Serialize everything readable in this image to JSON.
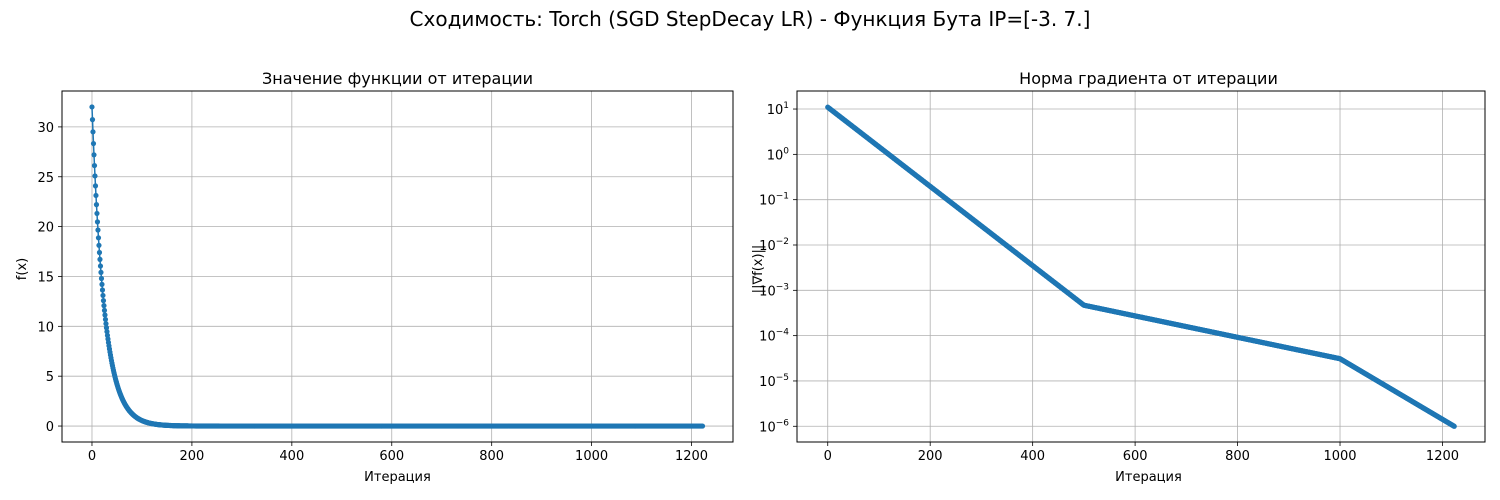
{
  "figure": {
    "title": "Сходимость: Torch (SGD StepDecay LR) - Функция Бута IP=[-3.  7.]"
  },
  "colors": {
    "series": "#1f77b4",
    "grid": "#b0b0b0",
    "axes": "#000000"
  },
  "chart_data": [
    {
      "type": "line",
      "title": "Значение функции от итерации",
      "xlabel": "Итерация",
      "ylabel": "f(x)",
      "xlim": [
        -60,
        1283
      ],
      "ylim": [
        -1.6,
        33.6
      ],
      "xticks": [
        0,
        200,
        400,
        600,
        800,
        1000,
        1200
      ],
      "yticks": [
        0,
        5,
        10,
        15,
        20,
        25,
        30
      ],
      "grid": true,
      "marker": "circle",
      "series": [
        {
          "model": "exponential_decay",
          "x_start": 0,
          "x_end": 1223,
          "y_start": 32.0,
          "decay_rate": 0.0406,
          "plateau_value": 0.0
        }
      ]
    },
    {
      "type": "line",
      "title": "Норма градиента от итерации",
      "xlabel": "Итерация",
      "ylabel": "||∇f(x)||",
      "yscale": "log",
      "xlim": [
        -60,
        1283
      ],
      "ylim": [
        4.5e-07,
        25
      ],
      "xticks": [
        0,
        200,
        400,
        600,
        800,
        1000,
        1200
      ],
      "yticks": [
        1e-06,
        1e-05,
        0.0001,
        0.001,
        0.01,
        0.1,
        1,
        10
      ],
      "ytick_labels": [
        {
          "base": "10",
          "exp": "−6"
        },
        {
          "base": "10",
          "exp": "−5"
        },
        {
          "base": "10",
          "exp": "−4"
        },
        {
          "base": "10",
          "exp": "−3"
        },
        {
          "base": "10",
          "exp": "−2"
        },
        {
          "base": "10",
          "exp": "−1"
        },
        {
          "base": "10",
          "exp": "0"
        },
        {
          "base": "10",
          "exp": "1"
        }
      ],
      "grid": true,
      "marker": "circle",
      "series": [
        {
          "model": "piecewise_log_linear",
          "x": [
            0,
            500,
            1000,
            1223
          ],
          "y": [
            11.0,
            0.00047,
            3.1e-05,
            1e-06
          ]
        }
      ]
    }
  ]
}
